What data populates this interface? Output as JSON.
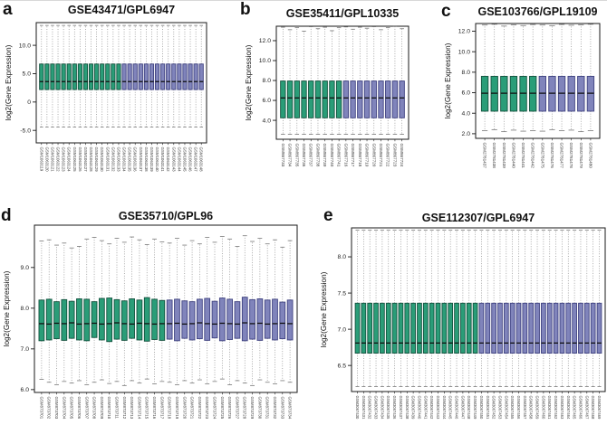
{
  "figure": {
    "background": "#ffffff"
  },
  "colors": {
    "group1_fill": "#2a9d78",
    "group1_stroke": "#14523e",
    "group2_fill": "#8084bb",
    "group2_stroke": "#3f4280",
    "median": "#111111",
    "whisker": "#8a8a8a",
    "cap": "#777777",
    "axis": "#1a1a1a",
    "tick_text": "#222222",
    "sample_text": "#3a3a3a"
  },
  "panels": [
    {
      "letter": "a",
      "title": "GSE43471/GPL6947"
    },
    {
      "letter": "b",
      "title": "GSE35411/GPL10335"
    },
    {
      "letter": "c",
      "title": "GSE103766/GPL19109"
    },
    {
      "letter": "d",
      "title": "GSE35710/GPL96"
    },
    {
      "letter": "e",
      "title": "GSE112307/GPL6947"
    }
  ],
  "chart_data": [
    {
      "type": "boxplot",
      "panel": "a",
      "title": "GSE43471/GPL6947",
      "ylabel": "log2(Gene Expression)",
      "ylim": [
        -7.2,
        14.0
      ],
      "ytick_values": [
        -5,
        0,
        5,
        10
      ],
      "ytick_labels": [
        "-5.0",
        "0",
        "5.0",
        "10.0"
      ],
      "n_group1": 15,
      "samples": [
        "GSM1063119",
        "GSM1063120",
        "GSM1063121",
        "GSM1063122",
        "GSM1063123",
        "GSM1063124",
        "GSM1063125",
        "GSM1063126",
        "GSM1063127",
        "GSM1063128",
        "GSM1063129",
        "GSM1063130",
        "GSM1063131",
        "GSM1063132",
        "GSM1063133",
        "GSM1063134",
        "GSM1063135",
        "GSM1063136",
        "GSM1063137",
        "GSM1063138",
        "GSM1063139",
        "GSM1063140",
        "GSM1063141",
        "GSM1063142",
        "GSM1063143",
        "GSM1063144",
        "GSM1063145",
        "GSM1063146",
        "GSM1063147",
        "GSM1063148"
      ],
      "box": {
        "q1": 2.2,
        "median": 3.6,
        "q3": 6.7,
        "whisker_low": -4.4,
        "whisker_high": 13.5
      }
    },
    {
      "type": "boxplot",
      "panel": "b",
      "title": "GSE35411/GPL10335",
      "ylabel": "log2(Gene Expression)",
      "ylim": [
        2.1,
        13.45
      ],
      "ytick_values": [
        4,
        6,
        8,
        10,
        12
      ],
      "ytick_labels": [
        "4.0",
        "6.0",
        "8.0",
        "10.0",
        "12.0"
      ],
      "n_group1": 9,
      "samples": [
        "GSM867733",
        "GSM867734",
        "GSM867735",
        "GSM867736",
        "GSM867737",
        "GSM867738",
        "GSM867739",
        "GSM867740",
        "GSM867741",
        "GSM867716",
        "GSM867717",
        "GSM867718",
        "GSM867719",
        "GSM867720",
        "GSM867721",
        "GSM867722",
        "GSM867723",
        "GSM867724"
      ],
      "box": {
        "q1": 4.25,
        "median": 6.25,
        "q3": 7.95,
        "whisker_low": 2.6,
        "whisker_high": 13.3
      },
      "hi_list": [
        13.35,
        13.1,
        13.3,
        12.95,
        13.4,
        13.2,
        13.35,
        13.0,
        13.3,
        13.38,
        13.15,
        13.35,
        13.25,
        13.4,
        13.1,
        13.3,
        13.42,
        13.2
      ]
    },
    {
      "type": "boxplot",
      "panel": "c",
      "title": "GSE103766/GPL19109",
      "ylabel": "log2(Gene Expression)",
      "ylim": [
        1.55,
        12.75
      ],
      "ytick_values": [
        2,
        4,
        6,
        8,
        10,
        12
      ],
      "ytick_labels": [
        "2.0",
        "4.0",
        "6.0",
        "8.0",
        "10.0",
        "12.0"
      ],
      "n_group1": 6,
      "samples": [
        "GSM2781437",
        "GSM2781438",
        "GSM2781439",
        "GSM2781440",
        "GSM2781441",
        "GSM2781442",
        "GSM2781475",
        "GSM2781476",
        "GSM2781477",
        "GSM2781478",
        "GSM2781479",
        "GSM2781480"
      ],
      "box": {
        "q1": 4.2,
        "median": 5.95,
        "q3": 7.6,
        "whisker_low": 2.3,
        "whisker_high": 12.6
      },
      "hi_list": [
        12.6,
        12.68,
        12.5,
        12.62,
        12.55,
        12.65,
        12.6,
        12.52,
        12.66,
        12.58,
        12.62,
        12.68
      ],
      "lo_list": [
        2.3,
        2.4,
        2.2,
        2.35,
        2.25,
        2.3,
        2.25,
        2.4,
        2.3,
        2.35,
        2.2,
        2.3
      ]
    },
    {
      "type": "boxplot",
      "panel": "d",
      "title": "GSE35710/GPL96",
      "ylabel": "log2(Gene Expression)",
      "ylim": [
        5.93,
        10.04
      ],
      "ytick_values": [
        6,
        7,
        8,
        9
      ],
      "ytick_labels": [
        "6.0",
        "7.0",
        "8.0",
        "9.0"
      ],
      "n_group1": 17,
      "samples": [
        "GSM873701",
        "GSM873702",
        "GSM873703",
        "GSM873704",
        "GSM873705",
        "GSM873706",
        "GSM873707",
        "GSM873708",
        "GSM873709",
        "GSM873710",
        "GSM873711",
        "GSM873712",
        "GSM873713",
        "GSM873714",
        "GSM873715",
        "GSM873716",
        "GSM873717",
        "GSM873718",
        "GSM873719",
        "GSM873720",
        "GSM873721",
        "GSM873722",
        "GSM873723",
        "GSM873724",
        "GSM873725",
        "GSM873726",
        "GSM873727",
        "GSM873728",
        "GSM873729",
        "GSM873730",
        "GSM873731",
        "GSM873732",
        "GSM873733",
        "GSM873734"
      ],
      "box": {
        "q1": 7.22,
        "median": 7.62,
        "q3": 8.2,
        "whisker_low": 6.18,
        "whisker_high": 9.65
      },
      "q3_list": [
        8.2,
        8.22,
        8.16,
        8.21,
        8.17,
        8.23,
        8.22,
        8.16,
        8.24,
        8.25,
        8.21,
        8.18,
        8.23,
        8.2,
        8.26,
        8.22,
        8.19,
        8.2,
        8.22,
        8.18,
        8.16,
        8.22,
        8.24,
        8.17,
        8.25,
        8.22,
        8.16,
        8.27,
        8.21,
        8.23,
        8.2,
        8.22,
        8.15,
        8.2
      ],
      "q1_list": [
        7.2,
        7.22,
        7.25,
        7.21,
        7.26,
        7.22,
        7.2,
        7.28,
        7.22,
        7.18,
        7.24,
        7.21,
        7.26,
        7.22,
        7.19,
        7.23,
        7.21,
        7.24,
        7.2,
        7.26,
        7.22,
        7.25,
        7.21,
        7.27,
        7.2,
        7.23,
        7.26,
        7.2,
        7.24,
        7.21,
        7.26,
        7.22,
        7.25,
        7.22
      ],
      "med_list": [
        7.62,
        7.61,
        7.63,
        7.62,
        7.64,
        7.61,
        7.62,
        7.63,
        7.61,
        7.62,
        7.64,
        7.62,
        7.61,
        7.63,
        7.62,
        7.61,
        7.62,
        7.62,
        7.63,
        7.61,
        7.62,
        7.64,
        7.62,
        7.61,
        7.63,
        7.62,
        7.61,
        7.64,
        7.62,
        7.63,
        7.61,
        7.62,
        7.63,
        7.62
      ],
      "hi_list": [
        9.65,
        9.68,
        9.55,
        9.6,
        9.48,
        9.52,
        9.7,
        9.74,
        9.66,
        9.58,
        9.72,
        9.62,
        9.75,
        9.68,
        9.56,
        9.7,
        9.63,
        9.6,
        9.72,
        9.55,
        9.66,
        9.58,
        9.74,
        9.62,
        9.76,
        9.7,
        9.52,
        9.78,
        9.64,
        9.72,
        9.58,
        9.68,
        9.5,
        9.66
      ],
      "lo_list": [
        6.25,
        6.18,
        6.12,
        6.2,
        6.16,
        6.22,
        6.12,
        6.18,
        6.24,
        6.15,
        6.2,
        6.1,
        6.22,
        6.16,
        6.26,
        6.14,
        6.2,
        6.18,
        6.12,
        6.22,
        6.16,
        6.24,
        6.14,
        6.2,
        6.26,
        6.12,
        6.22,
        6.16,
        6.1,
        6.24,
        6.18,
        6.14,
        6.22,
        6.18
      ]
    },
    {
      "type": "boxplot",
      "panel": "e",
      "title": "GSE112307/GPL6947",
      "ylabel": "log2(Gene Expression)",
      "ylim": [
        6.14,
        8.4
      ],
      "ytick_values": [
        6.5,
        7.0,
        7.5,
        8.0
      ],
      "ytick_labels": [
        "6.5",
        "7.0",
        "7.5",
        "8.0"
      ],
      "n_group1": 20,
      "samples": [
        "GSM3067430",
        "GSM3067431",
        "GSM3067432",
        "GSM3067433",
        "GSM3067434",
        "GSM3067435",
        "GSM3067436",
        "GSM3067437",
        "GSM3067438",
        "GSM3067439",
        "GSM3067440",
        "GSM3067441",
        "GSM3067442",
        "GSM3067443",
        "GSM3067444",
        "GSM3067445",
        "GSM3067446",
        "GSM3067447",
        "GSM3067448",
        "GSM3067449",
        "GSM3067450",
        "GSM3067451",
        "GSM3067452",
        "GSM3067453",
        "GSM3067454",
        "GSM3067455",
        "GSM3067456",
        "GSM3067457",
        "GSM3067458",
        "GSM3067459",
        "GSM3067460",
        "GSM3067461",
        "GSM3067462",
        "GSM3067463",
        "GSM3067464",
        "GSM3067465",
        "GSM3067466",
        "GSM3067467",
        "GSM3067468",
        "GSM3067469"
      ],
      "box": {
        "q1": 6.67,
        "median": 6.81,
        "q3": 7.36,
        "whisker_low": 6.21,
        "whisker_high": 8.37
      }
    }
  ]
}
